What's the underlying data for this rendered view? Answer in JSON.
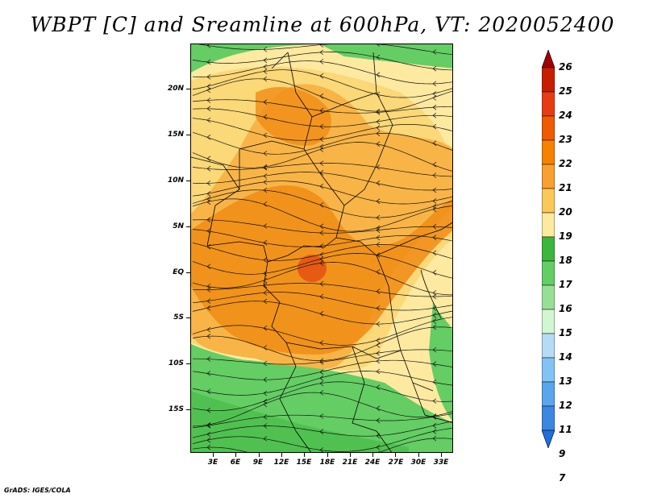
{
  "title": "WBPT [C] and Sreamline at 600hPa, VT: 2020052400",
  "credit": "GrADS: IGES/COLA",
  "lat_labels": [
    "20N",
    "15N",
    "10N",
    "5N",
    "EQ",
    "5S",
    "10S",
    "15S"
  ],
  "lon_labels": [
    "3E",
    "6E",
    "9E",
    "12E",
    "15E",
    "18E",
    "21E",
    "24E",
    "27E",
    "30E",
    "33E"
  ],
  "colorbar": {
    "labels": [
      "26",
      "25",
      "24",
      "23",
      "22",
      "21",
      "20",
      "19",
      "18",
      "17",
      "16",
      "15",
      "14",
      "13",
      "12",
      "11",
      "9",
      "7"
    ],
    "colors": [
      "#a00000",
      "#c81e00",
      "#e63c14",
      "#f05a00",
      "#f58200",
      "#f8a030",
      "#fbc85a",
      "#fde9a0",
      "#3cb63c",
      "#64cd64",
      "#96e096",
      "#d2f5d2",
      "#b4dcf5",
      "#82c3f5",
      "#5aa5eb",
      "#3c87e1",
      "#1e6edc"
    ]
  },
  "colors": {
    "orange_dark": "#f08c14",
    "orange_light": "#f8b447",
    "yellow": "#fbd878",
    "pale_yellow": "#fde9a0",
    "green": "#64cd64",
    "green_dark": "#3cb63c",
    "hot_spot": "#e65a14"
  }
}
